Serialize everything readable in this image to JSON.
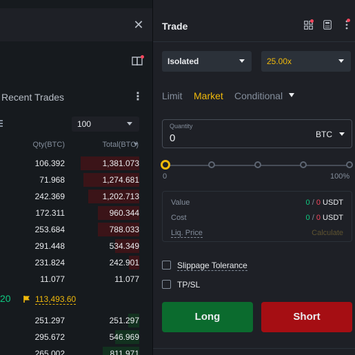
{
  "left_panel": {
    "section_title": "Recent Trades",
    "depth_value": "100",
    "col_qty": "Qty(BTC)",
    "col_total": "Total(BTC)",
    "asks": [
      {
        "qty": "106.392",
        "total": "1,381.073",
        "depth": 0.92
      },
      {
        "qty": "71.968",
        "total": "1,274.681",
        "depth": 0.88
      },
      {
        "qty": "242.369",
        "total": "1,202.713",
        "depth": 0.8
      },
      {
        "qty": "172.311",
        "total": "960.344",
        "depth": 0.65
      },
      {
        "qty": "253.684",
        "total": "788.033",
        "depth": 0.65
      },
      {
        "qty": "291.448",
        "total": "534.349",
        "depth": 0.38
      },
      {
        "qty": "231.824",
        "total": "242.901",
        "depth": 0.16
      },
      {
        "qty": "11.077",
        "total": "11.077",
        "depth": 0.0
      }
    ],
    "mid_price": "20",
    "mark_price": "113,493.60",
    "bids": [
      {
        "qty": "251.297",
        "total": "251.297",
        "depth": 0.17
      },
      {
        "qty": "295.672",
        "total": "546.969",
        "depth": 0.38
      },
      {
        "qty": "265.002",
        "total": "811.971",
        "depth": 0.58
      }
    ]
  },
  "right_panel": {
    "title": "Trade",
    "margin_mode": "Isolated",
    "leverage": "25.00x",
    "tabs": {
      "limit": "Limit",
      "market": "Market",
      "conditional": "Conditional"
    },
    "quantity_label": "Quantity",
    "quantity_value": "0",
    "quantity_unit": "BTC",
    "slider_min": "0",
    "slider_max": "100%",
    "slider_percent": 0,
    "info": {
      "value_label": "Value",
      "value_green": "0",
      "value_sep": "/",
      "value_red": "0",
      "value_unit": "USDT",
      "cost_label": "Cost",
      "cost_green": "0",
      "cost_sep": "/",
      "cost_red": "0",
      "cost_unit": "USDT",
      "liq_label": "Liq. Price",
      "liq_value": "Calculate"
    },
    "slippage_label": "Slippage Tolerance",
    "tpsl_label": "TP/SL",
    "long_label": "Long",
    "short_label": "Short"
  },
  "colors": {
    "accent": "#f0b90b",
    "green": "#0ecb81",
    "red": "#f6465d",
    "long_bg": "#0b6b2e",
    "short_bg": "#a50e13"
  }
}
